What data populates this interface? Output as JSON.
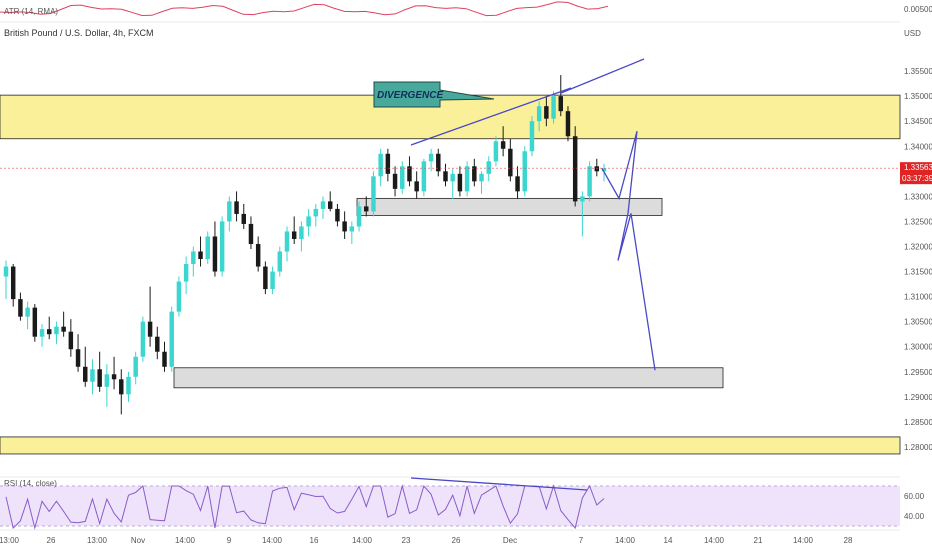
{
  "chart_data": {
    "type": "candlestick",
    "title": "British Pound / U.S. Dollar, 4h, FXCM",
    "currency_label": "USD",
    "y_ticks": [
      "1.35500",
      "1.35000",
      "1.34500",
      "1.34000",
      "1.33500",
      "1.33000",
      "1.32500",
      "1.32000",
      "1.31500",
      "1.31000",
      "1.30500",
      "1.30000",
      "1.29500",
      "1.29000",
      "1.28500",
      "1.28000"
    ],
    "y_range": [
      1.276,
      1.362
    ],
    "x_ticks": [
      "13:00",
      "26",
      "13:00",
      "Nov",
      "14:00",
      "9",
      "14:00",
      "16",
      "14:00",
      "23",
      "26",
      "Dec",
      "7",
      "14:00",
      "14",
      "14:00",
      "21",
      "14:00",
      "28"
    ],
    "last_price": "1.33563",
    "countdown": "03:37:39",
    "annotation": "DIVERGENCE",
    "zones": [
      {
        "name": "resistance",
        "from": 1.3415,
        "to": 1.3502
      },
      {
        "name": "support-mid",
        "from": 1.3262,
        "to": 1.3296
      },
      {
        "name": "support-low",
        "from": 1.2918,
        "to": 1.2958
      },
      {
        "name": "bottom-band",
        "from": 1.2786,
        "to": 1.282
      }
    ],
    "projection_path": [
      [
        1.3296,
        1.343
      ],
      [
        1.3288,
        1.3266
      ],
      [
        1.3266,
        1.3172
      ],
      [
        1.3266,
        1.3262
      ],
      [
        1.3262,
        1.2953
      ]
    ],
    "candles": [
      {
        "o": 1.314,
        "h": 1.3172,
        "l": 1.3095,
        "c": 1.316
      },
      {
        "o": 1.316,
        "h": 1.3165,
        "l": 1.308,
        "c": 1.3095
      },
      {
        "o": 1.3095,
        "h": 1.3108,
        "l": 1.3052,
        "c": 1.306
      },
      {
        "o": 1.306,
        "h": 1.309,
        "l": 1.3035,
        "c": 1.3078
      },
      {
        "o": 1.3078,
        "h": 1.3085,
        "l": 1.301,
        "c": 1.302
      },
      {
        "o": 1.302,
        "h": 1.3045,
        "l": 1.3,
        "c": 1.3035
      },
      {
        "o": 1.3035,
        "h": 1.306,
        "l": 1.3015,
        "c": 1.3025
      },
      {
        "o": 1.3025,
        "h": 1.305,
        "l": 1.3005,
        "c": 1.304
      },
      {
        "o": 1.304,
        "h": 1.307,
        "l": 1.302,
        "c": 1.303
      },
      {
        "o": 1.303,
        "h": 1.3055,
        "l": 1.298,
        "c": 1.2995
      },
      {
        "o": 1.2995,
        "h": 1.3025,
        "l": 1.295,
        "c": 1.296
      },
      {
        "o": 1.296,
        "h": 1.3,
        "l": 1.292,
        "c": 1.293
      },
      {
        "o": 1.293,
        "h": 1.2975,
        "l": 1.2905,
        "c": 1.2955
      },
      {
        "o": 1.2955,
        "h": 1.299,
        "l": 1.291,
        "c": 1.292
      },
      {
        "o": 1.292,
        "h": 1.2965,
        "l": 1.288,
        "c": 1.2945
      },
      {
        "o": 1.2945,
        "h": 1.298,
        "l": 1.2915,
        "c": 1.2935
      },
      {
        "o": 1.2935,
        "h": 1.2955,
        "l": 1.2865,
        "c": 1.2905
      },
      {
        "o": 1.2905,
        "h": 1.295,
        "l": 1.289,
        "c": 1.294
      },
      {
        "o": 1.294,
        "h": 1.299,
        "l": 1.2925,
        "c": 1.298
      },
      {
        "o": 1.298,
        "h": 1.306,
        "l": 1.297,
        "c": 1.305
      },
      {
        "o": 1.305,
        "h": 1.312,
        "l": 1.3,
        "c": 1.302
      },
      {
        "o": 1.302,
        "h": 1.304,
        "l": 1.2975,
        "c": 1.299
      },
      {
        "o": 1.299,
        "h": 1.301,
        "l": 1.295,
        "c": 1.296
      },
      {
        "o": 1.296,
        "h": 1.308,
        "l": 1.295,
        "c": 1.307
      },
      {
        "o": 1.307,
        "h": 1.314,
        "l": 1.306,
        "c": 1.313
      },
      {
        "o": 1.313,
        "h": 1.318,
        "l": 1.3105,
        "c": 1.3165
      },
      {
        "o": 1.3165,
        "h": 1.32,
        "l": 1.314,
        "c": 1.319
      },
      {
        "o": 1.319,
        "h": 1.322,
        "l": 1.316,
        "c": 1.3175
      },
      {
        "o": 1.3175,
        "h": 1.323,
        "l": 1.3165,
        "c": 1.322
      },
      {
        "o": 1.322,
        "h": 1.325,
        "l": 1.314,
        "c": 1.315
      },
      {
        "o": 1.315,
        "h": 1.326,
        "l": 1.314,
        "c": 1.325
      },
      {
        "o": 1.325,
        "h": 1.33,
        "l": 1.323,
        "c": 1.329
      },
      {
        "o": 1.329,
        "h": 1.331,
        "l": 1.325,
        "c": 1.3265
      },
      {
        "o": 1.3265,
        "h": 1.3285,
        "l": 1.3235,
        "c": 1.3245
      },
      {
        "o": 1.3245,
        "h": 1.326,
        "l": 1.3195,
        "c": 1.3205
      },
      {
        "o": 1.3205,
        "h": 1.322,
        "l": 1.315,
        "c": 1.316
      },
      {
        "o": 1.316,
        "h": 1.317,
        "l": 1.3105,
        "c": 1.3115
      },
      {
        "o": 1.3115,
        "h": 1.316,
        "l": 1.3105,
        "c": 1.315
      },
      {
        "o": 1.315,
        "h": 1.32,
        "l": 1.314,
        "c": 1.319
      },
      {
        "o": 1.319,
        "h": 1.324,
        "l": 1.317,
        "c": 1.323
      },
      {
        "o": 1.323,
        "h": 1.326,
        "l": 1.3205,
        "c": 1.3215
      },
      {
        "o": 1.3215,
        "h": 1.325,
        "l": 1.319,
        "c": 1.324
      },
      {
        "o": 1.324,
        "h": 1.3275,
        "l": 1.322,
        "c": 1.326
      },
      {
        "o": 1.326,
        "h": 1.3285,
        "l": 1.324,
        "c": 1.3275
      },
      {
        "o": 1.3275,
        "h": 1.33,
        "l": 1.3255,
        "c": 1.329
      },
      {
        "o": 1.329,
        "h": 1.331,
        "l": 1.327,
        "c": 1.3275
      },
      {
        "o": 1.3275,
        "h": 1.3285,
        "l": 1.324,
        "c": 1.325
      },
      {
        "o": 1.325,
        "h": 1.327,
        "l": 1.3215,
        "c": 1.323
      },
      {
        "o": 1.323,
        "h": 1.325,
        "l": 1.3205,
        "c": 1.324
      },
      {
        "o": 1.324,
        "h": 1.329,
        "l": 1.323,
        "c": 1.328
      },
      {
        "o": 1.328,
        "h": 1.33,
        "l": 1.326,
        "c": 1.327
      },
      {
        "o": 1.327,
        "h": 1.335,
        "l": 1.326,
        "c": 1.334
      },
      {
        "o": 1.334,
        "h": 1.3395,
        "l": 1.332,
        "c": 1.3385
      },
      {
        "o": 1.3385,
        "h": 1.3395,
        "l": 1.333,
        "c": 1.3345
      },
      {
        "o": 1.3345,
        "h": 1.336,
        "l": 1.33,
        "c": 1.3315
      },
      {
        "o": 1.3315,
        "h": 1.337,
        "l": 1.3305,
        "c": 1.336
      },
      {
        "o": 1.336,
        "h": 1.338,
        "l": 1.332,
        "c": 1.333
      },
      {
        "o": 1.333,
        "h": 1.335,
        "l": 1.3295,
        "c": 1.331
      },
      {
        "o": 1.331,
        "h": 1.3375,
        "l": 1.33,
        "c": 1.337
      },
      {
        "o": 1.337,
        "h": 1.3395,
        "l": 1.335,
        "c": 1.3385
      },
      {
        "o": 1.3385,
        "h": 1.3395,
        "l": 1.334,
        "c": 1.335
      },
      {
        "o": 1.335,
        "h": 1.3365,
        "l": 1.332,
        "c": 1.333
      },
      {
        "o": 1.333,
        "h": 1.3355,
        "l": 1.3295,
        "c": 1.3345
      },
      {
        "o": 1.3345,
        "h": 1.336,
        "l": 1.33,
        "c": 1.331
      },
      {
        "o": 1.331,
        "h": 1.337,
        "l": 1.33,
        "c": 1.336
      },
      {
        "o": 1.336,
        "h": 1.3375,
        "l": 1.332,
        "c": 1.333
      },
      {
        "o": 1.333,
        "h": 1.335,
        "l": 1.3305,
        "c": 1.3345
      },
      {
        "o": 1.3345,
        "h": 1.338,
        "l": 1.333,
        "c": 1.337
      },
      {
        "o": 1.337,
        "h": 1.342,
        "l": 1.336,
        "c": 1.341
      },
      {
        "o": 1.341,
        "h": 1.344,
        "l": 1.338,
        "c": 1.3395
      },
      {
        "o": 1.3395,
        "h": 1.3415,
        "l": 1.333,
        "c": 1.334
      },
      {
        "o": 1.334,
        "h": 1.336,
        "l": 1.3295,
        "c": 1.331
      },
      {
        "o": 1.331,
        "h": 1.34,
        "l": 1.33,
        "c": 1.339
      },
      {
        "o": 1.339,
        "h": 1.346,
        "l": 1.338,
        "c": 1.345
      },
      {
        "o": 1.345,
        "h": 1.349,
        "l": 1.343,
        "c": 1.348
      },
      {
        "o": 1.348,
        "h": 1.35,
        "l": 1.344,
        "c": 1.3455
      },
      {
        "o": 1.3455,
        "h": 1.351,
        "l": 1.3445,
        "c": 1.35
      },
      {
        "o": 1.35,
        "h": 1.3542,
        "l": 1.346,
        "c": 1.347
      },
      {
        "o": 1.347,
        "h": 1.348,
        "l": 1.341,
        "c": 1.342
      },
      {
        "o": 1.342,
        "h": 1.344,
        "l": 1.328,
        "c": 1.329
      },
      {
        "o": 1.329,
        "h": 1.331,
        "l": 1.322,
        "c": 1.33
      },
      {
        "o": 1.33,
        "h": 1.337,
        "l": 1.329,
        "c": 1.336
      },
      {
        "o": 1.336,
        "h": 1.3375,
        "l": 1.334,
        "c": 1.335
      },
      {
        "o": 1.335,
        "h": 1.3365,
        "l": 1.333,
        "c": 1.3356
      }
    ]
  },
  "rsi_panel": {
    "label": "RSI (14, close)",
    "levels": [
      "60.00",
      "40.00"
    ]
  },
  "atr_panel": {
    "label": "ATR (14, RMA)",
    "value": "0.00500"
  }
}
